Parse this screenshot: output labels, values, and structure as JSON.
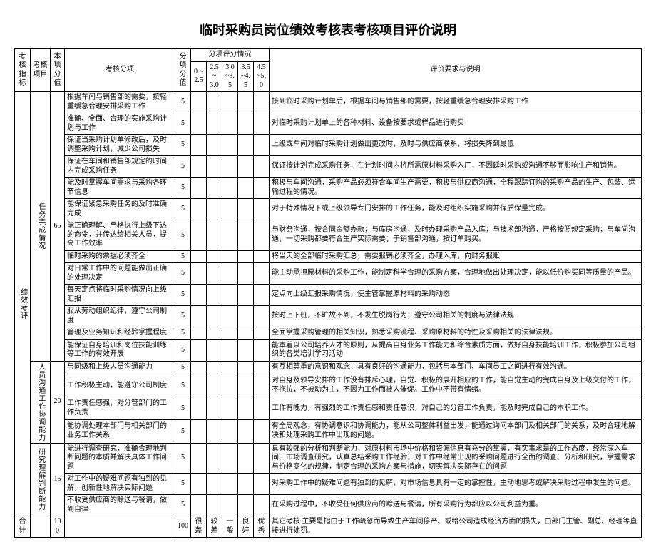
{
  "title": "临时采购员岗位绩效考核表考核项目评价说明",
  "colors": {
    "border": "#000000",
    "background": "#ffffff",
    "text": "#000000"
  },
  "header": {
    "indicator": "考核指标",
    "item": "考核项目",
    "itemScore": "本项分值",
    "subItem": "考核分项",
    "subScore": "分项分值",
    "scaleGroup": "分项评分情况",
    "desc": "评价要求与说明",
    "scale": [
      "0 ~2.5",
      "2.5 ~ 3.0",
      "3.0 ~3.5",
      "3.5 ~4.5",
      "4.5 ~5.0"
    ]
  },
  "indicator": "绩效考评",
  "sections": [
    {
      "label": "任务完成情况",
      "score": "65",
      "rows": [
        {
          "sub": "根据车间与销售部的需要，按轻重缓急合理安排采购工作",
          "val": "5",
          "desc": "接到临时采购计划单后，根据车间与销售部的需要，按轻重缓急合理安排采购工作"
        },
        {
          "sub": "准确、全面、合理的实施采购计划与工作",
          "val": "5",
          "desc": "对临时采购计划单上的各种材料、设备按要求或样品进行购买"
        },
        {
          "sub": "保证当采购计划单修改后，及时调整采购计划，减少公司损失",
          "val": "5",
          "desc": "上级或车间对临时采购计划做出更改时，及时与供应商联系，将损失降到最低"
        },
        {
          "sub": "保证在车间和销售部规定的时间内完成采购任务",
          "val": "5",
          "desc": "保证按计划完成采购任务，在计划时间内将所需原材料采购入厂，不因延时采购或沟通不够而影响生产和销售。"
        },
        {
          "sub": "能及时掌握车间需求与采购各环节信息",
          "val": "5",
          "desc": "积极与车间沟通，采购产品必须符合车间生产需要，积极与供应商沟通，全程跟踪订购的采购产品的生产、包装、运输过程的情况。"
        },
        {
          "sub": "能保证紧急采购任务的及时准确完成",
          "val": "5",
          "desc": "对于特殊情况下或上级领导专门安排的工作任务，能及时组织实施采购并保质保量完成。"
        },
        {
          "sub": "能正确理解、严格执行上级下达的命令，并传达给相关人员，提高工作效率",
          "val": "5",
          "desc": "与财务沟通，按合同金额办款；与库房沟通，及时办理采购产品入库；与技术部沟通，严格按照规定采购；与车间沟通，一切采购都要符合生产实际需要；于销售部沟通，按订单购买。"
        },
        {
          "sub": "临时采购的票据必须齐全",
          "val": "5",
          "desc": "将当天的全部临时采购汇总，需要报销必须齐全，办理入库，向财务报账"
        },
        {
          "sub": "对日常工作中的问题能做出正确的处理决定",
          "val": "5",
          "desc": "能主动承担原材料的采购工作，能制定科学合理的采购方案，合理地做出处理决定，能以低价购买同等质量的产品。"
        },
        {
          "sub": "每天定点将临时采购情况向上级汇报",
          "val": "5",
          "desc": "定点向上级汇报采购情况，使主管掌握原材料的采购动态"
        },
        {
          "sub": "服从劳动组织纪律，遵守公司制度",
          "val": "5",
          "desc": "按时上下班，不旷故不到，不发生脱岗行为；遵守公司相关的制度与法律法规"
        },
        {
          "sub": "管理及业务知识和经验掌握程度",
          "val": "5",
          "desc": "全面掌握采购管理的相关知识，熟悉采购流程、采购原材料的特性及采购相关的法律法规。"
        },
        {
          "sub": "能保证自身培训和岗位技能训练等工作的有效开展",
          "val": "5",
          "desc": "能本着以公司培养人才的原则，从提高自身业务工作能力和综合素质方面，做好自身技能培训工作，积极参加公司组织的各类培训学习活动"
        }
      ]
    },
    {
      "label": "人员沟通工作协调能力",
      "score": "20",
      "rows": [
        {
          "sub": "与同级和上级人员沟通能力",
          "val": "5",
          "desc": "有互相尊重的意识和观念，具有良好的沟通能力，包括与本部门、车间员工之间进行有效沟通。"
        },
        {
          "sub": "工作积极主动，能遵守公司制度",
          "val": "5",
          "desc": "对自身及领导安排的工作没有排斥心理，自觉、积极的展开相应的工作，能自觉主动的完成自身及上级交付的工作，不拖拉，不被动为主，不因为工作而被人催促。工作中不带有情绪。"
        },
        {
          "sub": "工作责任感强，对分管部门的工作负责",
          "val": "5",
          "desc": "工作有魄力，有强烈的工作责任感和责任意识，对自己的分管工作负责，能及时完成自己的本职工作。"
        },
        {
          "sub": "能协调处理本部门与相关部门的业务工作关系",
          "val": "5",
          "desc": "有全局观念，有协调意识和协调能力，能从公司整体利益出发，能通过询问本部门及相关部门的关系，及时合理地解决和处理采购工作中出现的问题。"
        }
      ]
    },
    {
      "label": "研究理解判断能力",
      "score": "15",
      "rows": [
        {
          "sub": "能进行调查研究，准确合理地判断问题的本质并解决具体工作问题",
          "val": "5",
          "desc": "具有较强的分析和判断能力，对原材料市场中价格和资源信息有充分的掌握，有实事求是的工作态度，经常深入车间、市场调查研究，认真总结采购工作经验，对工作中经常出现的采购问题进行全面的调查、分析和研究，掌握需求与价格变化的规律，制定合理的采购方案与措施，切实解决实际存在的问题"
        },
        {
          "sub": "对工作中的疑难问题有独到的见解，创新性地解决实际问题",
          "val": "5",
          "desc": "对采购工作中的疑难问题有独到的见解，对市场信息具有一定的掌控性，主动地思考或解决采购过程中发生的问题。"
        },
        {
          "sub": "不收受供应商的赊送与餐请，做到自律",
          "val": "5",
          "desc": "在采购过程中，不收受任何供应商的赊送与餐请，所有采购行为都应以公司利益为重。"
        }
      ]
    }
  ],
  "total": {
    "label": "合计",
    "score": "100",
    "subTotal": "100",
    "scale": [
      "很差",
      "较差",
      "一般",
      "良好",
      "优秀"
    ],
    "extraLabel": "其它考核",
    "extraDesc": "主要是指由于工作疏忽而导致生产车间停产、或给公司造成经济方面的损失，由部门主管、副总、经理等直接进行处罚。"
  }
}
